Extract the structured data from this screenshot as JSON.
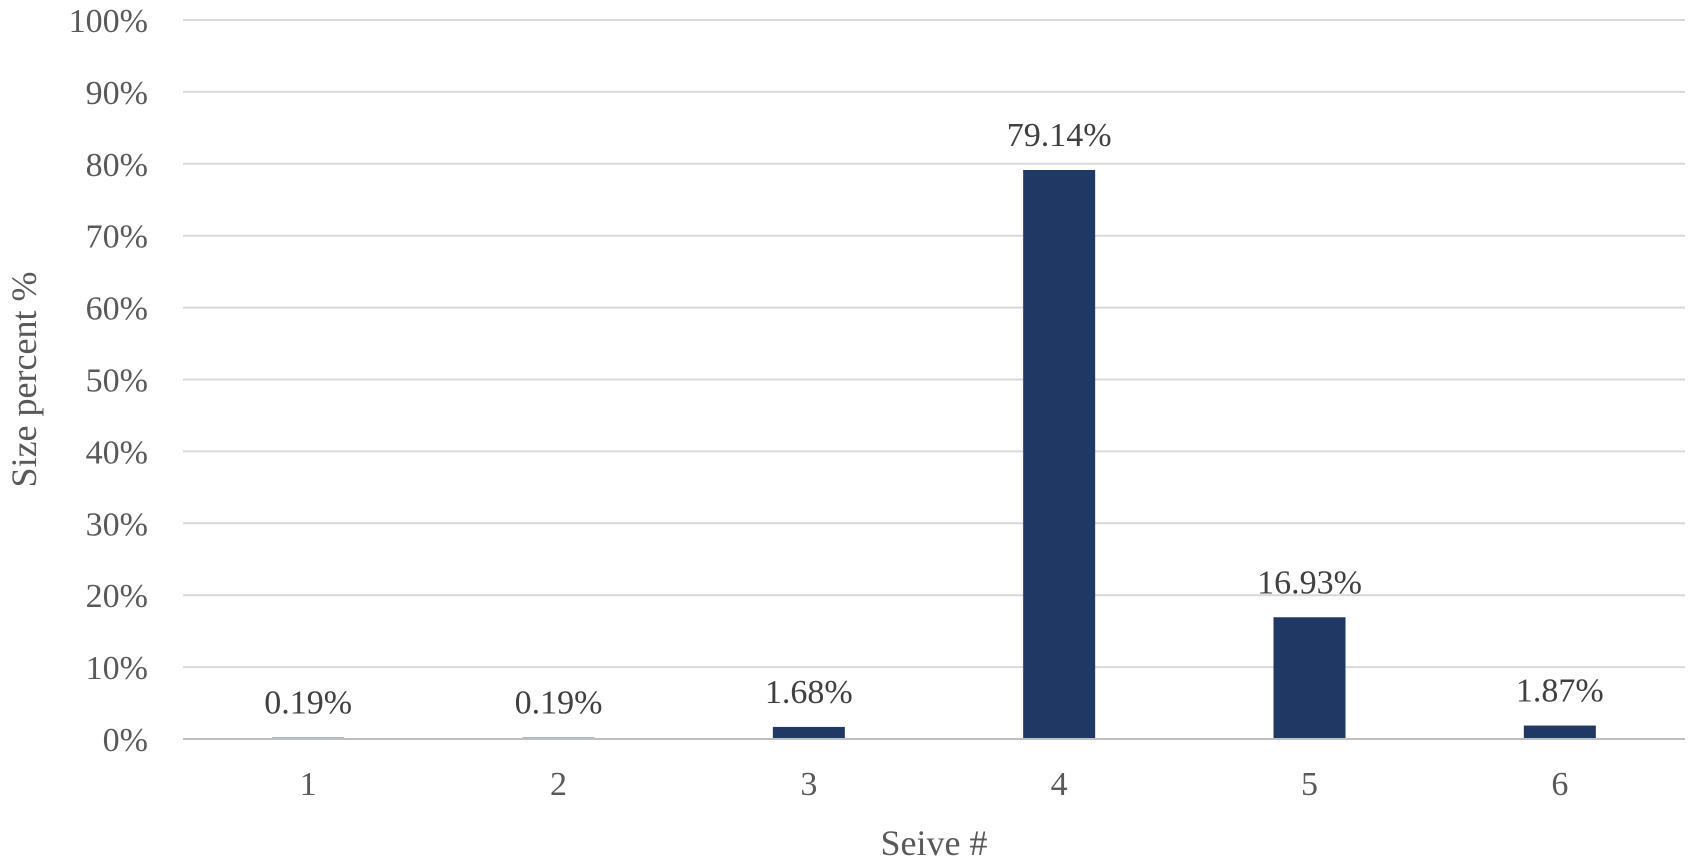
{
  "chart_data": {
    "type": "bar",
    "categories": [
      "1",
      "2",
      "3",
      "4",
      "5",
      "6"
    ],
    "values": [
      0.19,
      0.19,
      1.68,
      79.14,
      16.93,
      1.87
    ],
    "data_labels": [
      "0.19%",
      "0.19%",
      "1.68%",
      "79.14%",
      "16.93%",
      "1.87%"
    ],
    "title": "",
    "xlabel": "Seive #",
    "ylabel": "Size percent %",
    "ylim": [
      0,
      100
    ],
    "yticks": [
      "0%",
      "10%",
      "20%",
      "30%",
      "40%",
      "50%",
      "60%",
      "70%",
      "80%",
      "90%",
      "100%"
    ],
    "grid": true,
    "legend": "none",
    "colors": {
      "bar": "#203864",
      "grid": "#d9d9d9",
      "axis": "#bfbfbf"
    }
  }
}
